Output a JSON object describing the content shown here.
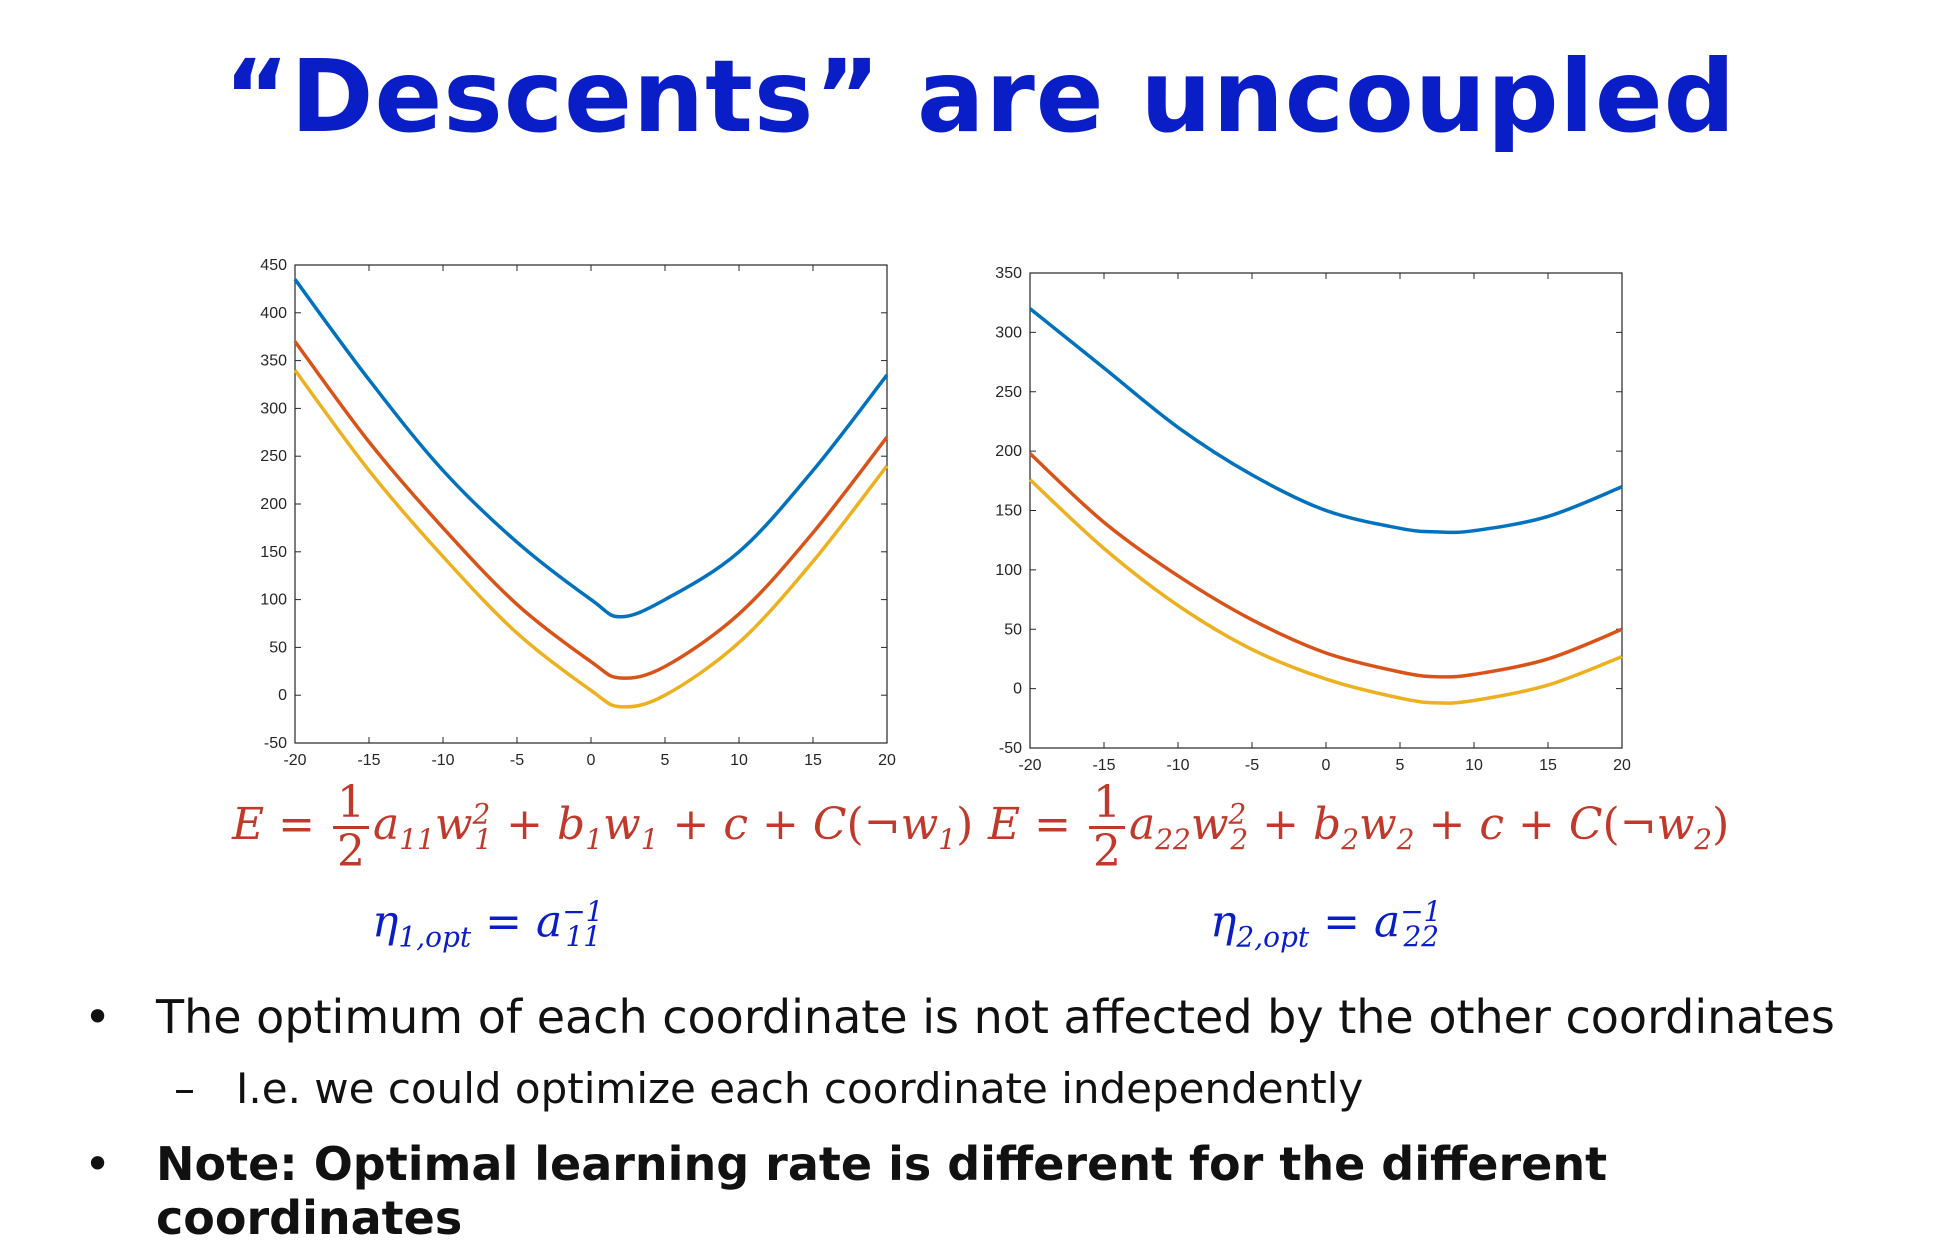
{
  "title": "“Descents” are uncoupled",
  "chart_data": [
    {
      "type": "line",
      "title": "",
      "xlabel": "",
      "ylabel": "",
      "xlim": [
        -20,
        20
      ],
      "ylim": [
        -50,
        450
      ],
      "xticks": [
        -20,
        -15,
        -10,
        -5,
        0,
        5,
        10,
        15,
        20
      ],
      "xtick_labels": [
        "-20",
        "-15",
        "-10",
        "-5",
        "0",
        "5",
        "10",
        "15",
        "20"
      ],
      "yticks": [
        -50,
        0,
        50,
        100,
        150,
        200,
        250,
        300,
        350,
        400,
        450
      ],
      "ytick_labels": [
        "-50",
        "0",
        "50",
        "100",
        "150",
        "200",
        "250",
        "300",
        "350",
        "400",
        "450"
      ],
      "grid": false,
      "series": [
        {
          "color": "#0072bd",
          "x": [
            -20,
            -15,
            -10,
            -5,
            0,
            2,
            5,
            10,
            15,
            20
          ],
          "y": [
            435,
            330,
            235,
            160,
            100,
            82,
            100,
            150,
            235,
            335
          ]
        },
        {
          "color": "#d95319",
          "x": [
            -20,
            -15,
            -10,
            -5,
            0,
            2,
            5,
            10,
            15,
            20
          ],
          "y": [
            370,
            265,
            175,
            95,
            35,
            18,
            30,
            85,
            170,
            270
          ]
        },
        {
          "color": "#edb120",
          "x": [
            -20,
            -15,
            -10,
            -5,
            0,
            2,
            5,
            10,
            15,
            20
          ],
          "y": [
            340,
            235,
            145,
            65,
            5,
            -12,
            0,
            55,
            140,
            240
          ]
        }
      ]
    },
    {
      "type": "line",
      "title": "",
      "xlabel": "",
      "ylabel": "",
      "xlim": [
        -20,
        20
      ],
      "ylim": [
        -50,
        350
      ],
      "xticks": [
        -20,
        -15,
        -10,
        -5,
        0,
        5,
        10,
        15,
        20
      ],
      "xtick_labels": [
        "-20",
        "-15",
        "-10",
        "-5",
        "0",
        "5",
        "10",
        "15",
        "20"
      ],
      "yticks": [
        -50,
        0,
        50,
        100,
        150,
        200,
        250,
        300,
        350
      ],
      "ytick_labels": [
        "-50",
        "0",
        "50",
        "100",
        "150",
        "200",
        "250",
        "300",
        "350"
      ],
      "grid": false,
      "series": [
        {
          "color": "#0072bd",
          "x": [
            -20,
            -15,
            -10,
            -5,
            0,
            5,
            7.5,
            10,
            15,
            20
          ],
          "y": [
            320,
            270,
            220,
            180,
            150,
            135,
            132,
            133,
            145,
            170
          ]
        },
        {
          "color": "#d95319",
          "x": [
            -20,
            -15,
            -10,
            -5,
            0,
            5,
            7.5,
            10,
            15,
            20
          ],
          "y": [
            198,
            140,
            95,
            58,
            30,
            14,
            10,
            12,
            25,
            50
          ]
        },
        {
          "color": "#edb120",
          "x": [
            -20,
            -15,
            -10,
            -5,
            0,
            5,
            7.5,
            10,
            15,
            20
          ],
          "y": [
            176,
            118,
            70,
            33,
            8,
            -8,
            -12,
            -10,
            3,
            27
          ]
        }
      ]
    }
  ],
  "equations": {
    "left": {
      "E": "E",
      "eq1": " = ",
      "frac_num": "1",
      "frac_den": "2",
      "a": "a",
      "a_sub": "11",
      "w": "w",
      "w_sub": "1",
      "w_sup": "2",
      "plus1": " + ",
      "b": "b",
      "b_sub": "1",
      "w2": "w",
      "w2_sub": "1",
      "plus2": " + ",
      "c": "c",
      "plus3": " + ",
      "C": "C",
      "open": "(¬",
      "w3": "w",
      "w3_sub": "1",
      "close": ")"
    },
    "right": {
      "E": "E",
      "eq1": " = ",
      "frac_num": "1",
      "frac_den": "2",
      "a": "a",
      "a_sub": "22",
      "w": "w",
      "w_sub": "2",
      "w_sup": "2",
      "plus1": " + ",
      "b": "b",
      "b_sub": "2",
      "w2": "w",
      "w2_sub": "2",
      "plus2": " + ",
      "c": "c",
      "plus3": " + ",
      "C": "C",
      "open": "(¬",
      "w3": "w",
      "w3_sub": "2",
      "close": ")"
    },
    "eta_left": {
      "eta": "η",
      "eta_sub": "1,opt",
      "eq": " = ",
      "a": "a",
      "a_sub": "11",
      "a_sup": "−1"
    },
    "eta_right": {
      "eta": "η",
      "eta_sub": "2,opt",
      "eq": " = ",
      "a": "a",
      "a_sub": "22",
      "a_sup": "−1"
    }
  },
  "bullets": {
    "b1": "The optimum of each coordinate is not affected by the other coordinates",
    "b2": "I.e. we could optimize each coordinate independently",
    "b3": "Note: Optimal learning rate is different for the different coordinates",
    "dot": "•",
    "dash": "–"
  }
}
